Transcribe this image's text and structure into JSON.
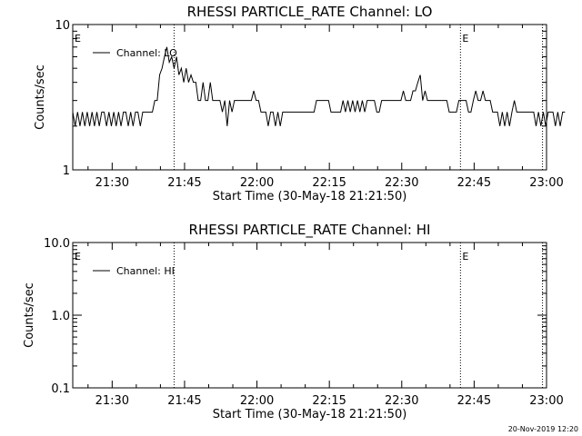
{
  "chart_data": [
    {
      "type": "line",
      "title": "RHESSI PARTICLE_RATE Channel: LO",
      "xlabel": "Start Time (30-May-18 21:21:50)",
      "ylabel": "Counts/sec",
      "y_scale": "log",
      "ylim": [
        1,
        10
      ],
      "y_ticks": [
        "1",
        "10"
      ],
      "x_range": [
        "21:21:50",
        "23:00:00"
      ],
      "x_ticks": [
        "21:30",
        "21:45",
        "22:00",
        "22:15",
        "22:30",
        "22:45",
        "23:00"
      ],
      "legend": {
        "position": "top-left",
        "entries": [
          "Channel: LO"
        ]
      },
      "markers": [
        {
          "time": "21:42:50",
          "label": ""
        },
        {
          "time": "22:42:10",
          "label": "E"
        },
        {
          "time": "22:59:10",
          "label": ""
        }
      ],
      "axis_left_label": "E",
      "series": [
        {
          "name": "Channel: LO",
          "x_start": "21:21:50",
          "x_step_seconds": 30,
          "values": [
            2.5,
            2,
            2.5,
            2,
            2.5,
            2,
            2.5,
            2,
            2.5,
            2,
            2.5,
            2,
            2.5,
            2.5,
            2,
            2.5,
            2,
            2.5,
            2,
            2.5,
            2,
            2.5,
            2.5,
            2,
            2.5,
            2,
            2.5,
            2.5,
            2,
            2.5,
            2.5,
            2.5,
            2.5,
            2.5,
            3,
            3,
            4.5,
            5,
            6,
            7,
            5.5,
            6,
            5,
            6,
            4.5,
            5,
            4,
            5,
            4,
            4.5,
            4,
            4,
            3,
            3,
            4,
            3,
            3,
            4,
            3,
            3,
            3,
            3,
            2.5,
            3,
            2,
            3,
            2.5,
            3,
            3,
            3,
            3,
            3,
            3,
            3,
            3,
            3.5,
            3,
            3,
            2.5,
            2.5,
            2.5,
            2,
            2.5,
            2.5,
            2,
            2.5,
            2,
            2.5,
            2.5,
            2.5,
            2.5,
            2.5,
            2.5,
            2.5,
            2.5,
            2.5,
            2.5,
            2.5,
            2.5,
            2.5,
            2.5,
            3,
            3,
            3,
            3,
            3,
            3,
            2.5,
            2.5,
            2.5,
            2.5,
            2.5,
            3,
            2.5,
            3,
            2.5,
            3,
            2.5,
            3,
            2.5,
            3,
            2.5,
            3,
            3,
            3,
            3,
            2.5,
            2.5,
            3,
            3,
            3,
            3,
            3,
            3,
            3,
            3,
            3,
            3.5,
            3,
            3,
            3,
            3.5,
            3.5,
            4,
            4.5,
            3,
            3.5,
            3,
            3,
            3,
            3,
            3,
            3,
            3,
            3,
            3,
            2.5,
            2.5,
            2.5,
            2.5,
            3,
            3,
            3,
            3,
            2.5,
            2.5,
            3,
            3.5,
            3,
            3,
            3.5,
            3,
            3,
            3,
            2.5,
            2.5,
            2.5,
            2,
            2.5,
            2,
            2.5,
            2,
            2.5,
            3,
            2.5,
            2.5,
            2.5,
            2.5,
            2.5,
            2.5,
            2.5,
            2.5,
            2,
            2.5,
            2,
            2.5,
            2,
            2.5,
            2.5,
            2.5,
            2,
            2.5,
            2,
            2.5,
            2.5
          ]
        }
      ]
    },
    {
      "type": "line",
      "title": "RHESSI PARTICLE_RATE Channel: HI",
      "xlabel": "Start Time (30-May-18 21:21:50)",
      "ylabel": "Counts/sec",
      "y_scale": "log",
      "ylim": [
        0.1,
        10
      ],
      "y_ticks": [
        "0.1",
        "1.0",
        "10.0"
      ],
      "x_range": [
        "21:21:50",
        "23:00:00"
      ],
      "x_ticks": [
        "21:30",
        "21:45",
        "22:00",
        "22:15",
        "22:30",
        "22:45",
        "23:00"
      ],
      "legend": {
        "position": "top-left",
        "entries": [
          "Channel: HI"
        ]
      },
      "markers": [
        {
          "time": "21:42:50",
          "label": ""
        },
        {
          "time": "22:42:10",
          "label": "E"
        },
        {
          "time": "22:59:10",
          "label": ""
        }
      ],
      "axis_left_label": "E",
      "series": [
        {
          "name": "Channel: HI",
          "values": []
        }
      ]
    }
  ],
  "footer": {
    "timestamp": "20-Nov-2019 12:20"
  }
}
